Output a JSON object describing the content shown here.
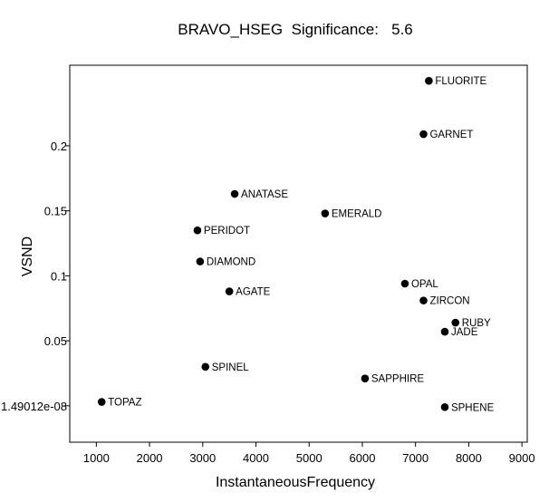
{
  "chart_data": {
    "type": "scatter",
    "title": "BRAVO_HSEG  Significance:   5.6",
    "xlabel": "InstantaneousFrequency",
    "ylabel": "VSND",
    "xlim": [
      500,
      9100
    ],
    "ylim": [
      -0.028,
      0.262
    ],
    "xticks": [
      1000,
      2000,
      3000,
      4000,
      5000,
      6000,
      7000,
      8000,
      9000
    ],
    "yticks": [
      {
        "value": 1.5e-08,
        "label": "1.49012e-08"
      },
      {
        "value": 0.05,
        "label": "0.05"
      },
      {
        "value": 0.1,
        "label": "0.1"
      },
      {
        "value": 0.15,
        "label": "0.15"
      },
      {
        "value": 0.2,
        "label": "0.2"
      }
    ],
    "grid": false,
    "marker_color": "#000000",
    "points": [
      {
        "label": "FLUORITE",
        "x": 7250,
        "y": 0.25
      },
      {
        "label": "GARNET",
        "x": 7150,
        "y": 0.209
      },
      {
        "label": "ANATASE",
        "x": 3600,
        "y": 0.163
      },
      {
        "label": "EMERALD",
        "x": 5300,
        "y": 0.148
      },
      {
        "label": "PERIDOT",
        "x": 2900,
        "y": 0.135
      },
      {
        "label": "DIAMOND",
        "x": 2950,
        "y": 0.111
      },
      {
        "label": "AGATE",
        "x": 3500,
        "y": 0.088
      },
      {
        "label": "OPAL",
        "x": 6800,
        "y": 0.094
      },
      {
        "label": "ZIRCON",
        "x": 7150,
        "y": 0.081
      },
      {
        "label": "RUBY",
        "x": 7750,
        "y": 0.064
      },
      {
        "label": "JADE",
        "x": 7550,
        "y": 0.057
      },
      {
        "label": "SPINEL",
        "x": 3050,
        "y": 0.03
      },
      {
        "label": "SAPPHIRE",
        "x": 6050,
        "y": 0.021
      },
      {
        "label": "TOPAZ",
        "x": 1100,
        "y": 0.003
      },
      {
        "label": "SPHENE",
        "x": 7550,
        "y": -0.001
      }
    ]
  }
}
